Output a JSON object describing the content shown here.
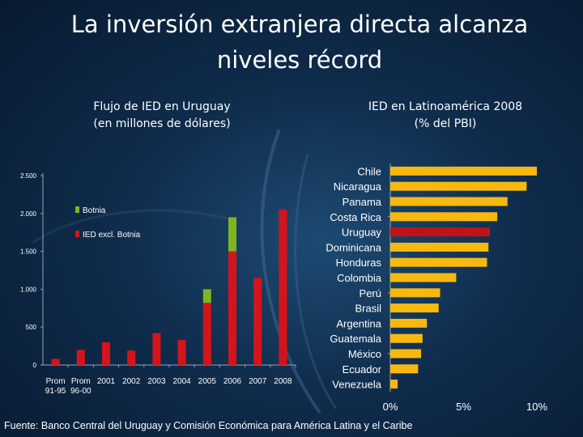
{
  "title": "La inversión extranjera directa alcanza niveles récord",
  "source": "Fuente: Banco Central del Uruguay y Comisión Económica para América Latina y el Caribe",
  "colors": {
    "ied_excl": "#d4141b",
    "botnia": "#7fb51e",
    "latam_bar": "#f7b80f",
    "uruguay_bar": "#c01318"
  },
  "chart_data": [
    {
      "type": "bar",
      "stacked": true,
      "subtitle_line1": "Flujo de IED en Uruguay",
      "subtitle_line2": "(en millones de dólares)",
      "categories": [
        "Prom 91-95",
        "Prom 96-00",
        "2001",
        "2002",
        "2003",
        "2004",
        "2005",
        "2006",
        "2007",
        "2008"
      ],
      "category_lines": [
        [
          "Prom",
          "91-95"
        ],
        [
          "Prom",
          "96-00"
        ],
        [
          "2001"
        ],
        [
          "2002"
        ],
        [
          "2003"
        ],
        [
          "2004"
        ],
        [
          "2005"
        ],
        [
          "2006"
        ],
        [
          "2007"
        ],
        [
          "2008"
        ]
      ],
      "series": [
        {
          "name": "IED excl. Botnia",
          "values": [
            80,
            200,
            300,
            190,
            420,
            330,
            820,
            1500,
            1150,
            2050
          ]
        },
        {
          "name": "Botnia",
          "values": [
            0,
            0,
            0,
            0,
            0,
            0,
            180,
            450,
            0,
            0
          ]
        }
      ],
      "ylim": [
        0,
        2500
      ],
      "yticks": [
        0,
        500,
        1000,
        1500,
        2000,
        2500
      ],
      "ytick_labels": [
        "0",
        "500",
        "1.000",
        "1.500",
        "2.000",
        "2.500"
      ],
      "legend": [
        {
          "label": "Botnia",
          "series": "Botnia"
        },
        {
          "label": "IED excl. Botnia",
          "series": "IED excl. Botnia"
        }
      ],
      "legend_position": "top-left",
      "grid": false
    },
    {
      "type": "bar",
      "orientation": "horizontal",
      "subtitle_line1": "IED en Latinoamérica 2008",
      "subtitle_line2": "(% del PBI)",
      "categories": [
        "Chile",
        "Nicaragua",
        "Panama",
        "Costa Rica",
        "Uruguay",
        "Dominicana",
        "Honduras",
        "Colombia",
        "Perú",
        "Brasil",
        "Argentina",
        "Guatemala",
        "México",
        "Ecuador",
        "Venezuela"
      ],
      "values": [
        10.0,
        9.3,
        8.0,
        7.3,
        6.8,
        6.7,
        6.6,
        4.5,
        3.4,
        3.3,
        2.5,
        2.2,
        2.1,
        1.9,
        0.5
      ],
      "highlight": "Uruguay",
      "xlim": [
        0,
        11
      ],
      "xticks": [
        0,
        5,
        10
      ],
      "xtick_labels": [
        "0%",
        "5%",
        "10%"
      ],
      "grid": false
    }
  ]
}
